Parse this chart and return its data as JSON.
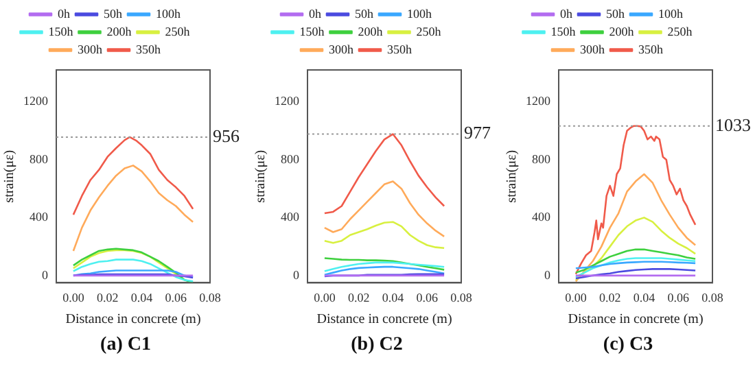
{
  "chart_data": [
    {
      "type": "line",
      "title": "(a) C1",
      "xlabel": "Distance in concrete (m)",
      "ylabel": "strain(με)",
      "x": [
        0,
        0.005,
        0.01,
        0.015,
        0.02,
        0.025,
        0.03,
        0.035,
        0.04,
        0.045,
        0.05,
        0.055,
        0.06,
        0.065,
        0.07
      ],
      "xlim": [
        -0.01,
        0.08
      ],
      "xticks": [
        {
          "value": 0,
          "label": "0.00"
        },
        {
          "value": 0.02,
          "label": "0.02"
        },
        {
          "value": 0.04,
          "label": "0.04"
        },
        {
          "value": 0.06,
          "label": "0.06"
        },
        {
          "value": 0.08,
          "label": "0.08"
        }
      ],
      "ylim": [
        -50,
        1420
      ],
      "yticks": [
        0,
        400,
        800,
        1200
      ],
      "grid": false,
      "legend": "top",
      "marker": "none",
      "line_style": "solid",
      "ref_lines": [
        {
          "axis": "y",
          "value": 956,
          "label": "956",
          "color": "#999999",
          "line_style": "dotted"
        }
      ],
      "series": [
        {
          "name": "0h",
          "color": "#b36cf0",
          "values": [
            0,
            0,
            0,
            0,
            0,
            0,
            0,
            0,
            0,
            0,
            0,
            0,
            0,
            0,
            0
          ]
        },
        {
          "name": "50h",
          "color": "#4b4be0",
          "values": [
            0,
            5,
            5,
            8,
            8,
            8,
            8,
            8,
            8,
            8,
            8,
            8,
            0,
            -5,
            -15
          ]
        },
        {
          "name": "100h",
          "color": "#3aa8ff",
          "values": [
            0,
            10,
            15,
            25,
            30,
            35,
            35,
            35,
            35,
            35,
            35,
            35,
            25,
            0,
            -10
          ]
        },
        {
          "name": "150h",
          "color": "#4ef0f0",
          "values": [
            30,
            60,
            80,
            95,
            100,
            110,
            110,
            110,
            100,
            80,
            50,
            20,
            -10,
            -30,
            -40
          ]
        },
        {
          "name": "200h",
          "color": "#3ed03e",
          "values": [
            70,
            110,
            140,
            170,
            180,
            185,
            180,
            175,
            160,
            130,
            100,
            60,
            20,
            -30,
            -48
          ]
        },
        {
          "name": "250h",
          "color": "#d8f040",
          "values": [
            50,
            90,
            130,
            155,
            170,
            175,
            175,
            170,
            155,
            130,
            90,
            50,
            10,
            -30,
            null
          ]
        },
        {
          "name": "300h",
          "color": "#ffaa5a",
          "values": [
            170,
            330,
            450,
            540,
            620,
            690,
            740,
            760,
            720,
            650,
            570,
            520,
            480,
            420,
            370
          ]
        },
        {
          "name": "350h",
          "color": "#f05a4a",
          "x": [
            0,
            0.005,
            0.01,
            0.015,
            0.02,
            0.025,
            0.03,
            0.033,
            0.037,
            0.04,
            0.045,
            0.05,
            0.055,
            0.06,
            0.065,
            0.07
          ],
          "values": [
            420,
            550,
            660,
            730,
            820,
            880,
            935,
            956,
            930,
            900,
            840,
            730,
            660,
            610,
            550,
            460
          ]
        }
      ]
    },
    {
      "type": "line",
      "title": "(b) C2",
      "xlabel": "Distance in concrete (m)",
      "ylabel": "strain(με)",
      "x": [
        0,
        0.005,
        0.01,
        0.015,
        0.02,
        0.025,
        0.03,
        0.035,
        0.04,
        0.045,
        0.05,
        0.055,
        0.06,
        0.065,
        0.07
      ],
      "xlim": [
        -0.01,
        0.08
      ],
      "xticks": [
        {
          "value": 0,
          "label": "0.00"
        },
        {
          "value": 0.02,
          "label": "0.02"
        },
        {
          "value": 0.04,
          "label": "0.04"
        },
        {
          "value": 0.06,
          "label": "0.06"
        },
        {
          "value": 0.08,
          "label": "0.08"
        }
      ],
      "ylim": [
        -50,
        1420
      ],
      "yticks": [
        0,
        400,
        800,
        1200
      ],
      "grid": false,
      "legend": "top",
      "marker": "none",
      "line_style": "solid",
      "ref_lines": [
        {
          "axis": "y",
          "value": 977,
          "label": "977",
          "color": "#999999",
          "line_style": "dotted"
        }
      ],
      "series": [
        {
          "name": "0h",
          "color": "#b36cf0",
          "values": [
            0,
            0,
            0,
            0,
            0,
            0,
            0,
            0,
            0,
            0,
            0,
            0,
            0,
            0,
            0
          ]
        },
        {
          "name": "50h",
          "color": "#4b4be0",
          "values": [
            -5,
            0,
            0,
            0,
            0,
            5,
            5,
            5,
            5,
            5,
            8,
            10,
            10,
            10,
            10
          ]
        },
        {
          "name": "100h",
          "color": "#3aa8ff",
          "values": [
            5,
            20,
            35,
            45,
            52,
            55,
            58,
            60,
            60,
            55,
            50,
            45,
            35,
            25,
            15
          ]
        },
        {
          "name": "150h",
          "color": "#4ef0f0",
          "values": [
            30,
            45,
            60,
            70,
            80,
            85,
            90,
            90,
            90,
            85,
            80,
            75,
            70,
            65,
            60
          ]
        },
        {
          "name": "200h",
          "color": "#3ed03e",
          "values": [
            120,
            115,
            110,
            108,
            108,
            105,
            105,
            103,
            100,
            90,
            80,
            70,
            60,
            50,
            40
          ]
        },
        {
          "name": "250h",
          "color": "#d8f040",
          "values": [
            240,
            225,
            240,
            280,
            300,
            320,
            345,
            365,
            370,
            340,
            280,
            240,
            210,
            195,
            190
          ]
        },
        {
          "name": "300h",
          "color": "#ffaa5a",
          "values": [
            330,
            300,
            320,
            390,
            450,
            510,
            570,
            630,
            650,
            600,
            500,
            420,
            360,
            310,
            270
          ]
        },
        {
          "name": "350h",
          "color": "#f05a4a",
          "values": [
            430,
            440,
            480,
            580,
            680,
            770,
            860,
            940,
            977,
            900,
            790,
            690,
            610,
            540,
            480
          ]
        }
      ]
    },
    {
      "type": "line",
      "title": "(c) C3",
      "xlabel": "Distance in concrete (m)",
      "ylabel": "strain(με)",
      "x": [
        0,
        0.005,
        0.01,
        0.015,
        0.02,
        0.025,
        0.03,
        0.035,
        0.04,
        0.045,
        0.05,
        0.055,
        0.06,
        0.065,
        0.07
      ],
      "xlim": [
        -0.01,
        0.08
      ],
      "xticks": [
        {
          "value": 0,
          "label": "0.00"
        },
        {
          "value": 0.02,
          "label": "0.02"
        },
        {
          "value": 0.04,
          "label": "0.04"
        },
        {
          "value": 0.06,
          "label": "0.06"
        },
        {
          "value": 0.08,
          "label": "0.08"
        }
      ],
      "ylim": [
        -50,
        1420
      ],
      "yticks": [
        0,
        400,
        800,
        1200
      ],
      "grid": false,
      "legend": "top",
      "marker": "none",
      "line_style": "solid",
      "ref_lines": [
        {
          "axis": "y",
          "value": 1033,
          "label": "1033",
          "color": "#999999",
          "line_style": "dotted"
        }
      ],
      "series": [
        {
          "name": "0h",
          "color": "#b36cf0",
          "values": [
            0,
            0,
            0,
            0,
            0,
            0,
            0,
            0,
            0,
            0,
            0,
            0,
            0,
            0,
            0
          ]
        },
        {
          "name": "50h",
          "color": "#4b4be0",
          "values": [
            -20,
            -10,
            0,
            8,
            15,
            25,
            32,
            38,
            42,
            45,
            45,
            45,
            42,
            38,
            35
          ]
        },
        {
          "name": "100h",
          "color": "#3aa8ff",
          "values": [
            50,
            55,
            60,
            70,
            80,
            85,
            90,
            92,
            95,
            95,
            95,
            93,
            90,
            88,
            85
          ]
        },
        {
          "name": "150h",
          "color": "#4ef0f0",
          "values": [
            -10,
            20,
            50,
            70,
            90,
            105,
            115,
            120,
            120,
            120,
            120,
            115,
            110,
            105,
            100
          ]
        },
        {
          "name": "200h",
          "color": "#3ed03e",
          "values": [
            20,
            40,
            70,
            100,
            130,
            150,
            170,
            180,
            180,
            170,
            160,
            150,
            140,
            125,
            115
          ]
        },
        {
          "name": "250h",
          "color": "#d8f040",
          "values": [
            -30,
            20,
            60,
            120,
            200,
            280,
            340,
            380,
            400,
            370,
            310,
            260,
            220,
            190,
            150
          ]
        },
        {
          "name": "300h",
          "color": "#ffaa5a",
          "values": [
            -40,
            30,
            100,
            200,
            330,
            430,
            580,
            650,
            700,
            640,
            520,
            420,
            330,
            260,
            210
          ]
        },
        {
          "name": "350h",
          "color": "#f05a4a",
          "x": [
            0,
            0.003,
            0.006,
            0.009,
            0.011,
            0.012,
            0.013,
            0.015,
            0.016,
            0.018,
            0.02,
            0.022,
            0.024,
            0.026,
            0.028,
            0.03,
            0.032,
            0.034,
            0.036,
            0.038,
            0.04,
            0.042,
            0.044,
            0.046,
            0.047,
            0.049,
            0.051,
            0.053,
            0.055,
            0.057,
            0.059,
            0.061,
            0.063,
            0.065,
            0.067,
            0.07
          ],
          "values": [
            10,
            80,
            140,
            170,
            300,
            380,
            250,
            360,
            330,
            550,
            620,
            550,
            700,
            740,
            900,
            1000,
            1020,
            1033,
            1033,
            1030,
            1000,
            940,
            960,
            930,
            960,
            940,
            820,
            800,
            660,
            620,
            560,
            600,
            520,
            480,
            420,
            350
          ]
        }
      ]
    }
  ]
}
